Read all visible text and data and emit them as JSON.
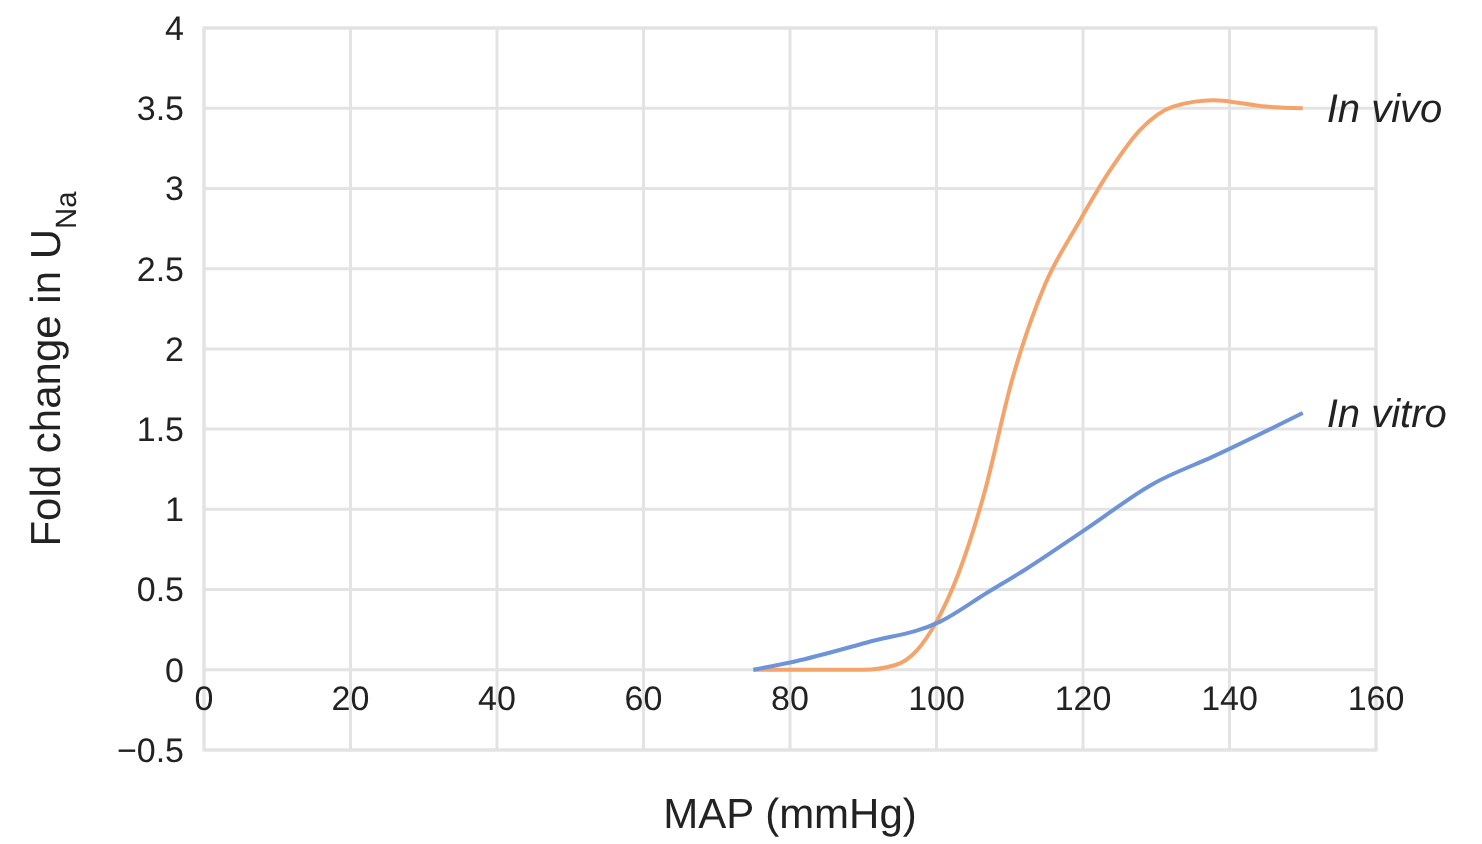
{
  "chart_data": {
    "type": "line",
    "xlabel": "MAP (mmHg)",
    "ylabel": "Fold change in U$_{Na}$",
    "xlim": [
      0,
      160
    ],
    "xticks": [
      0,
      20,
      40,
      60,
      80,
      100,
      120,
      140,
      160
    ],
    "ylim": [
      -0.5,
      4
    ],
    "yticks": [
      {
        "value": -0.5,
        "label": "−0.5"
      },
      0,
      0.5,
      1,
      1.5,
      2,
      2.5,
      3,
      3.5,
      4
    ],
    "grid": true,
    "marker": "none",
    "line_style": "solid",
    "series": [
      {
        "name": "In vivo",
        "color": "#f4a46a",
        "x": [
          75,
          90,
          94.4,
          97.3,
          100,
          103,
          106.4,
          110.4,
          114.8,
          119.2,
          123.5,
          127.9,
          132.3,
          137.8,
          145,
          150
        ],
        "values": [
          0,
          0,
          0.03,
          0.12,
          0.3,
          0.6,
          1.08,
          1.82,
          2.4,
          2.77,
          3.1,
          3.37,
          3.51,
          3.55,
          3.51,
          3.5
        ]
      },
      {
        "name": "In vitro",
        "color": "#6e93d6",
        "x": [
          75,
          80.5,
          90.5,
          100.5,
          106.9,
          112.3,
          120.5,
          129.6,
          137.8,
          150
        ],
        "values": [
          0,
          0.05,
          0.17,
          0.3,
          0.48,
          0.63,
          0.88,
          1.16,
          1.33,
          1.6
        ]
      }
    ]
  }
}
